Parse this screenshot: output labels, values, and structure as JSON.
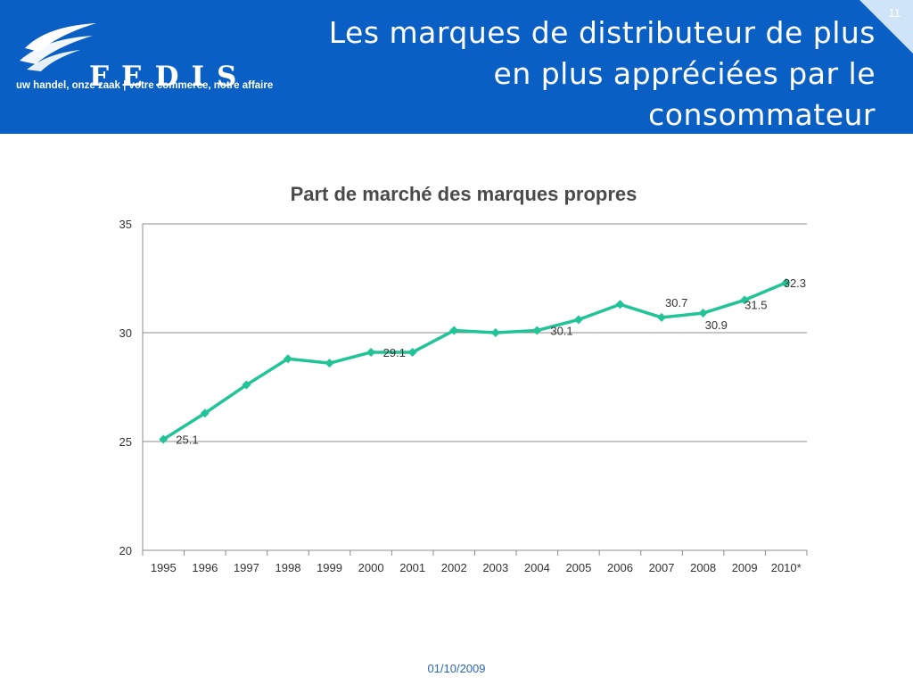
{
  "header": {
    "title": "Les marques de distributeur de plus en plus appréciées par le consommateur",
    "page_number": "11",
    "logo_name": "FEDIS",
    "logo_tagline": "uw handel, onze zaak  |  votre commerce, notre affaire",
    "background_color": "#0a5fc4"
  },
  "chart_data": {
    "type": "line",
    "title": "Part de marché des marques propres",
    "categories": [
      "1995",
      "1996",
      "1997",
      "1998",
      "1999",
      "2000",
      "2001",
      "2002",
      "2003",
      "2004",
      "2005",
      "2006",
      "2007",
      "2008",
      "2009",
      "2010*"
    ],
    "series": [
      {
        "color": "#20c496",
        "values": [
          25.1,
          26.3,
          27.6,
          28.8,
          28.6,
          29.1,
          29.1,
          30.1,
          30.0,
          30.1,
          30.6,
          31.3,
          30.7,
          30.9,
          31.5,
          32.3
        ]
      }
    ],
    "data_labels": [
      {
        "index": 0,
        "text": "25.1"
      },
      {
        "index": 6,
        "text": "29.1"
      },
      {
        "index": 9,
        "text": "30.1"
      },
      {
        "index": 12,
        "text": "30.7"
      },
      {
        "index": 13,
        "text": "30.9"
      },
      {
        "index": 14,
        "text": "31.5"
      },
      {
        "index": 15,
        "text": "32.3"
      }
    ],
    "ylim": [
      20,
      35
    ],
    "yticks": [
      "20",
      "25",
      "30",
      "35"
    ],
    "grid": true,
    "legend": "none"
  },
  "footer": {
    "date": "01/10/2009"
  }
}
